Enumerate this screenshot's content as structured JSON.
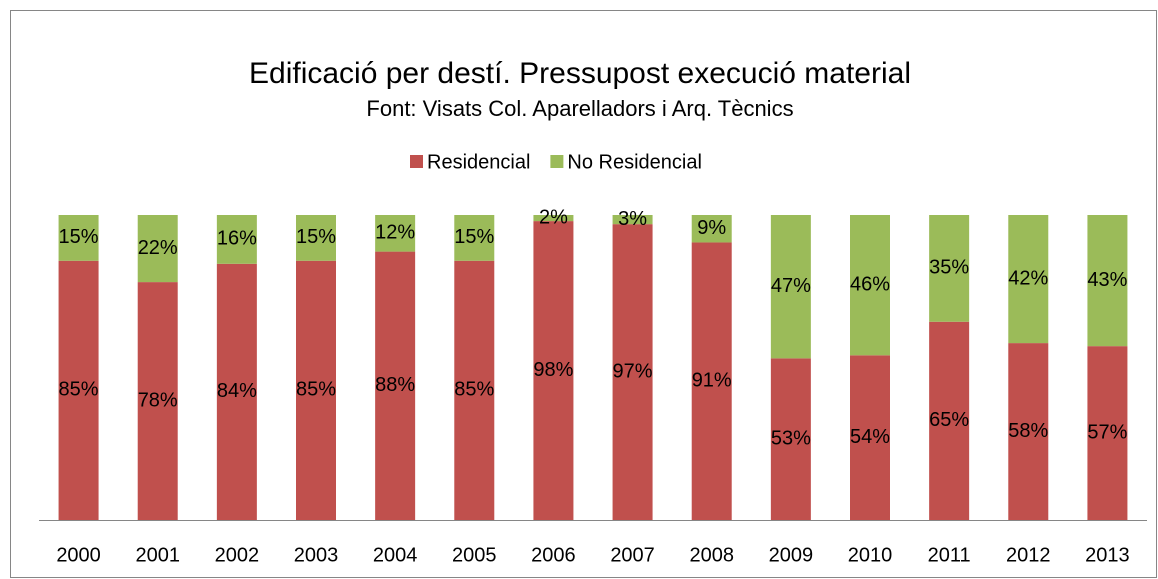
{
  "chart_data": {
    "type": "stacked_bar",
    "title": "Edificació per destí. Pressupost execució material",
    "subtitle": "Font: Visats Col. Aparelladors i Arq. Tècnics",
    "categories": [
      "2000",
      "2001",
      "2002",
      "2003",
      "2004",
      "2005",
      "2006",
      "2007",
      "2008",
      "2009",
      "2010",
      "2011",
      "2012",
      "2013"
    ],
    "series": [
      {
        "name": "Residencial",
        "color": "#c0504d",
        "values": [
          85,
          78,
          84,
          85,
          88,
          85,
          98,
          97,
          91,
          53,
          54,
          65,
          58,
          57
        ],
        "value_labels": [
          "85%",
          "78%",
          "84%",
          "85%",
          "88%",
          "85%",
          "98%",
          "97%",
          "91%",
          "53%",
          "54%",
          "65%",
          "58%",
          "57%"
        ]
      },
      {
        "name": "No Residencial",
        "color": "#9bbb59",
        "values": [
          15,
          22,
          16,
          15,
          12,
          15,
          2,
          3,
          9,
          47,
          46,
          35,
          42,
          43
        ],
        "value_labels": [
          "15%",
          "22%",
          "16%",
          "15%",
          "12%",
          "15%",
          "2%",
          "3%",
          "9%",
          "47%",
          "46%",
          "35%",
          "42%",
          "43%"
        ]
      }
    ],
    "legend": "top"
  }
}
